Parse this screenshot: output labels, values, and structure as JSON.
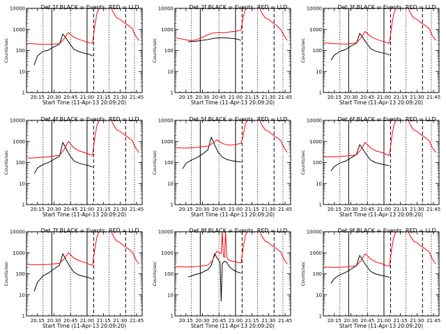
{
  "chart_data": {
    "type": "line",
    "layout": "3x3 grid of panels",
    "colors": {
      "events": "#000000",
      "lld": "#ff0000"
    },
    "legend": {
      "black": "BLACK",
      "black_label": "Events",
      "red": "RED",
      "red_label": "LLD",
      "separator": "=",
      "comma": ","
    },
    "x_ticks": [
      "20:15",
      "20:30",
      "20:45",
      "21:00",
      "21:15",
      "21:30",
      "21:45"
    ],
    "x_ticks_minutes": [
      0,
      15,
      30,
      45,
      60,
      75,
      90
    ],
    "xlim_minutes": [
      -10,
      95
    ],
    "y_scale": "log",
    "ylim": [
      1,
      10000
    ],
    "y_ticks": [
      "1",
      "10",
      "100",
      "1000",
      "10000"
    ],
    "ylabel": "Counts/sec",
    "x_axis_time_note": "minutes after 20:15",
    "panels": [
      {
        "title": "Det 1f",
        "xlabel": "Start Time (11-Apr-13 20:09:20)",
        "red": {
          "x": [
            -9,
            0,
            10,
            20,
            24,
            28,
            33,
            38,
            44,
            47,
            50,
            52,
            54,
            57,
            62,
            66,
            69,
            72,
            75,
            78,
            82,
            86,
            89,
            92
          ],
          "y": [
            220,
            200,
            195,
            210,
            350,
            700,
            420,
            330,
            260,
            230,
            220,
            1500,
            6000,
            12000,
            11000,
            13000,
            6000,
            3500,
            3000,
            2200,
            1600,
            1100,
            500,
            300
          ]
        },
        "black": {
          "x": [
            -3,
            0,
            5,
            10,
            15,
            20,
            23,
            26,
            29,
            33,
            37,
            42,
            47,
            50
          ],
          "y": [
            20,
            55,
            90,
            105,
            150,
            200,
            600,
            380,
            220,
            115,
            90,
            75,
            65,
            55
          ]
        },
        "solid_lines": [
          13,
          45
        ],
        "dashed_lines": [
          51,
          80
        ],
        "dotted_lines": [
          5,
          30,
          65,
          88
        ]
      },
      {
        "title": "Det 2f",
        "xlabel": "Start Time (11-Apr-13 20:09:20)",
        "red": {
          "x": [
            -9,
            0,
            5,
            10,
            15,
            20,
            25,
            30,
            35,
            40,
            45,
            50,
            52,
            54,
            57,
            62,
            66,
            69,
            72,
            75,
            78,
            82,
            86,
            89,
            92
          ],
          "y": [
            400,
            320,
            290,
            330,
            420,
            560,
            680,
            720,
            700,
            760,
            800,
            950,
            4000,
            9000,
            12000,
            11000,
            13000,
            6000,
            3500,
            3000,
            2200,
            1600,
            1000,
            500,
            300
          ]
        },
        "black": {
          "x": [
            2,
            8,
            14,
            20,
            26,
            32,
            38,
            44,
            48,
            50
          ],
          "y": [
            260,
            270,
            300,
            330,
            380,
            400,
            390,
            360,
            330,
            300
          ]
        },
        "solid_lines": [
          13,
          45
        ],
        "dashed_lines": [
          51,
          80
        ],
        "dotted_lines": [
          5,
          30,
          65,
          88
        ]
      },
      {
        "title": "Det 3f",
        "xlabel": "Start Time (11-Apr-13 20:09:20)",
        "red": {
          "x": [
            -9,
            0,
            10,
            20,
            24,
            28,
            33,
            38,
            44,
            47,
            50,
            52,
            54,
            57,
            62,
            66,
            69,
            72,
            75,
            78,
            82,
            86,
            89,
            92
          ],
          "y": [
            230,
            210,
            200,
            230,
            380,
            800,
            460,
            340,
            270,
            240,
            220,
            1500,
            6000,
            12000,
            11000,
            13000,
            6000,
            3500,
            3000,
            2200,
            1600,
            1100,
            500,
            300
          ]
        },
        "black": {
          "x": [
            -3,
            0,
            5,
            10,
            15,
            20,
            23,
            26,
            29,
            33,
            37,
            42,
            47,
            50
          ],
          "y": [
            35,
            60,
            90,
            110,
            160,
            220,
            650,
            400,
            230,
            120,
            95,
            80,
            70,
            60
          ]
        },
        "solid_lines": [
          13,
          45
        ],
        "dashed_lines": [
          51,
          80
        ],
        "dotted_lines": [
          5,
          30,
          65,
          88
        ]
      },
      {
        "title": "Det 4f",
        "xlabel": "Start Time (11-Apr-13 20:09:20)",
        "red": {
          "x": [
            -9,
            0,
            10,
            20,
            24,
            28,
            33,
            38,
            44,
            47,
            50,
            52,
            54,
            57,
            62,
            66,
            69,
            72,
            75,
            78,
            82,
            86,
            89,
            92
          ],
          "y": [
            160,
            170,
            185,
            220,
            400,
            1000,
            500,
            350,
            280,
            240,
            220,
            1500,
            6000,
            12000,
            11000,
            13000,
            6000,
            3500,
            3000,
            2200,
            1600,
            1100,
            500,
            300
          ]
        },
        "black": {
          "x": [
            -3,
            0,
            5,
            10,
            15,
            20,
            23,
            26,
            29,
            33,
            37,
            42,
            47,
            50
          ],
          "y": [
            30,
            55,
            80,
            100,
            140,
            200,
            900,
            450,
            230,
            120,
            95,
            80,
            70,
            60
          ]
        },
        "solid_lines": [
          13,
          45
        ],
        "dashed_lines": [
          51,
          80
        ],
        "dotted_lines": [
          5,
          30,
          65,
          88
        ]
      },
      {
        "title": "Det 5f",
        "xlabel": "Start Time (11-Apr-13 20:09:20)",
        "red": {
          "x": [
            -9,
            0,
            10,
            20,
            24,
            28,
            33,
            38,
            44,
            47,
            50,
            52,
            54,
            57,
            62,
            66,
            69,
            72,
            75,
            78,
            82,
            86,
            89,
            92
          ],
          "y": [
            500,
            480,
            520,
            600,
            800,
            1200,
            800,
            680,
            700,
            750,
            800,
            2000,
            7000,
            12000,
            11000,
            13000,
            6000,
            3500,
            3000,
            2200,
            1600,
            1100,
            500,
            300
          ]
        },
        "black": {
          "x": [
            -3,
            0,
            5,
            10,
            15,
            20,
            23,
            26,
            29,
            33,
            37,
            42,
            47,
            50
          ],
          "y": [
            50,
            90,
            130,
            170,
            250,
            400,
            1600,
            700,
            320,
            180,
            140,
            120,
            110,
            105
          ]
        },
        "solid_lines": [
          13,
          45
        ],
        "dashed_lines": [
          51,
          80
        ],
        "dotted_lines": [
          5,
          30,
          65,
          88
        ]
      },
      {
        "title": "Det 6f",
        "xlabel": "Start Time (11-Apr-13 20:09:20)",
        "red": {
          "x": [
            -9,
            0,
            10,
            20,
            24,
            28,
            33,
            38,
            44,
            47,
            50,
            52,
            54,
            57,
            62,
            66,
            69,
            72,
            75,
            78,
            82,
            86,
            89,
            92
          ],
          "y": [
            180,
            190,
            200,
            230,
            400,
            900,
            480,
            350,
            290,
            240,
            220,
            1500,
            6000,
            12000,
            11000,
            13000,
            6000,
            3500,
            3000,
            2200,
            1600,
            1100,
            500,
            300
          ]
        },
        "black": {
          "x": [
            -3,
            0,
            5,
            10,
            15,
            20,
            23,
            26,
            29,
            33,
            37,
            42,
            47,
            50
          ],
          "y": [
            40,
            65,
            95,
            115,
            165,
            240,
            700,
            420,
            240,
            130,
            100,
            85,
            75,
            70
          ]
        },
        "solid_lines": [
          13,
          45
        ],
        "dashed_lines": [
          51,
          80
        ],
        "dotted_lines": [
          5,
          30,
          65,
          88
        ]
      },
      {
        "title": "Det 7f",
        "xlabel": "Start Time (11-Apr-13 20:09:20)",
        "red": {
          "x": [
            -9,
            0,
            10,
            20,
            24,
            28,
            33,
            38,
            44,
            47,
            50,
            52,
            54,
            57,
            62,
            66,
            69,
            72,
            75,
            78,
            82,
            86,
            89,
            92
          ],
          "y": [
            280,
            270,
            280,
            320,
            500,
            1000,
            560,
            420,
            330,
            280,
            250,
            1500,
            6000,
            12000,
            11000,
            13000,
            6000,
            3500,
            3000,
            2200,
            1600,
            1100,
            500,
            300
          ]
        },
        "black": {
          "x": [
            -3,
            0,
            5,
            10,
            15,
            20,
            23,
            26,
            29,
            33,
            37,
            42,
            47,
            50
          ],
          "y": [
            15,
            40,
            80,
            110,
            170,
            260,
            900,
            450,
            240,
            120,
            90,
            75,
            65,
            55
          ]
        },
        "solid_lines": [
          13,
          45
        ],
        "dashed_lines": [
          51,
          80
        ],
        "dotted_lines": [
          5,
          30,
          65,
          88
        ]
      },
      {
        "title": "Det 8f",
        "xlabel": "Start Time (11-Apr-13 20:09:20)",
        "red": {
          "x": [
            -9,
            0,
            10,
            20,
            24,
            28,
            32,
            33,
            34,
            35,
            36,
            37,
            38,
            40,
            44,
            47,
            50,
            52,
            54,
            57,
            62,
            66,
            69,
            72,
            75,
            78,
            82,
            86,
            89,
            92
          ],
          "y": [
            220,
            210,
            220,
            260,
            420,
            1200,
            900,
            10000,
            700,
            600,
            10000,
            650,
            500,
            420,
            380,
            350,
            330,
            1800,
            7000,
            12000,
            11000,
            13000,
            6000,
            3500,
            3000,
            2200,
            1600,
            1100,
            500,
            300
          ]
        },
        "black": {
          "x": [
            2,
            8,
            14,
            20,
            23,
            26,
            29,
            31,
            32,
            33,
            35,
            37,
            40,
            44,
            47,
            50
          ],
          "y": [
            70,
            90,
            110,
            160,
            250,
            900,
            500,
            350,
            5,
            300,
            400,
            350,
            200,
            140,
            120,
            110
          ]
        },
        "solid_lines": [
          13,
          45
        ],
        "dashed_lines": [
          51,
          80
        ],
        "dotted_lines": [
          5,
          30,
          65,
          88
        ]
      },
      {
        "title": "Det 9f",
        "xlabel": "Start Time (11-Apr-13 20:09:20)",
        "red": {
          "x": [
            -9,
            0,
            10,
            20,
            24,
            28,
            33,
            38,
            44,
            47,
            50,
            52,
            54,
            57,
            62,
            66,
            69,
            72,
            75,
            78,
            82,
            86,
            89,
            92
          ],
          "y": [
            210,
            200,
            210,
            240,
            420,
            900,
            500,
            360,
            290,
            250,
            230,
            1500,
            6000,
            12000,
            11000,
            13000,
            6000,
            3500,
            3000,
            2200,
            1600,
            1100,
            500,
            300
          ]
        },
        "black": {
          "x": [
            -3,
            0,
            5,
            10,
            15,
            20,
            23,
            26,
            29,
            33,
            37,
            42,
            47,
            50
          ],
          "y": [
            35,
            60,
            90,
            115,
            165,
            240,
            750,
            420,
            240,
            130,
            100,
            85,
            75,
            68
          ]
        },
        "solid_lines": [
          13,
          45
        ],
        "dashed_lines": [
          51,
          80
        ],
        "dotted_lines": [
          5,
          30,
          65,
          88
        ]
      }
    ]
  }
}
